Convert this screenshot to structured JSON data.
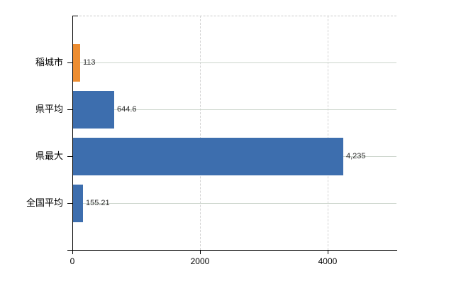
{
  "chart": {
    "background": "#ffffff",
    "axis_color": "#000000",
    "row_grid_color": "#ccd5cc",
    "vertical_grid_color": "#d2d2d2",
    "top_border_color": "#c9c9c9",
    "label_color": "#000000",
    "value_label_color": "#2b2b2b"
  },
  "chart_data": {
    "type": "bar",
    "orientation": "horizontal",
    "title": "",
    "xlabel": "",
    "ylabel": "",
    "legend": "none",
    "grid": "on",
    "categories": [
      "稲城市",
      "県平均",
      "県最大",
      "全国平均"
    ],
    "values": [
      113,
      644.6,
      4235,
      155.21
    ],
    "value_labels": [
      "113",
      "644.6",
      "4,235",
      "155.21"
    ],
    "bar_colors": [
      "#ed8d31",
      "#3d6eae",
      "#3d6eae",
      "#3d6eae"
    ],
    "x_ticks": [
      0,
      2000,
      4000
    ],
    "x_tick_labels": [
      "0",
      "2000",
      "4000"
    ],
    "xlim": [
      0,
      5078
    ]
  }
}
